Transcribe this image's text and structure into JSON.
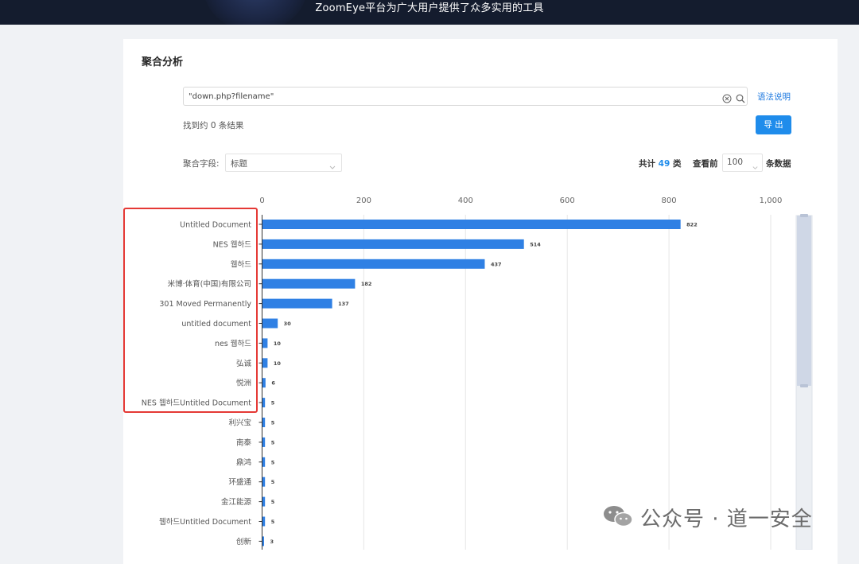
{
  "header": {
    "slogan": "ZoomEye平台为广大用户提供了众多实用的工具"
  },
  "panel": {
    "title": "聚合分析"
  },
  "search": {
    "value": "\"down.php?filename\"",
    "syntax_link": "语法说明"
  },
  "results": {
    "count_text": "找到约 0 条结果",
    "export_label": "导 出"
  },
  "aggregate": {
    "field_label": "聚合字段:",
    "field_value": "标题",
    "total_prefix": "共计",
    "total_count": "49",
    "total_suffix": "类",
    "view_label": "查看前",
    "top_n": "100",
    "unit_label": "条数据"
  },
  "chart_data": {
    "type": "bar",
    "orientation": "horizontal",
    "xlim": [
      0,
      1000
    ],
    "x_ticks": [
      "0",
      "200",
      "400",
      "600",
      "800",
      "1,000"
    ],
    "categories": [
      "Untitled Document",
      "NES 웹하드",
      "웹하드",
      "米博·体育(中国)有限公司",
      "301 Moved Permanently",
      "untitled document",
      "nes 웹하드",
      "弘诚",
      "悦洲",
      "NES 웹하드Untitled Document",
      "利兴宝",
      "南泰",
      "鼎鸿",
      "环盛通",
      "金江能源",
      "웹하드Untitled Document",
      "创新"
    ],
    "values": [
      822,
      514,
      437,
      182,
      137,
      30,
      10,
      10,
      6,
      5,
      5,
      5,
      5,
      5,
      5,
      5,
      3
    ],
    "bar_color": "#2f80e4",
    "grid": true
  },
  "watermark": {
    "text": "公众号 · 道一安全"
  }
}
